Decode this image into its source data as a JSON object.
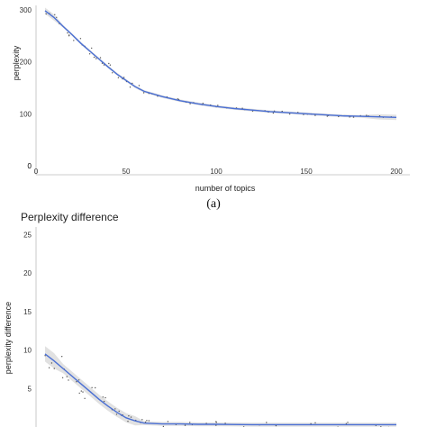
{
  "chart_data": [
    {
      "type": "line",
      "panel_label": "(a)",
      "title": "",
      "xlabel": "number of topics",
      "ylabel": "perplexity",
      "xlim": [
        0,
        205
      ],
      "ylim": [
        0,
        310
      ],
      "xticks": [
        0,
        50,
        100,
        150,
        200
      ],
      "yticks": [
        0,
        100,
        200,
        300
      ],
      "grid": false,
      "series": [
        {
          "color": "#4a6fd4",
          "band_color": "#c8c8c8",
          "x": [
            5,
            10,
            15,
            20,
            25,
            30,
            35,
            40,
            45,
            50,
            55,
            60,
            70,
            80,
            90,
            100,
            110,
            120,
            130,
            140,
            150,
            160,
            170,
            180,
            190,
            200
          ],
          "y": [
            298,
            285,
            268,
            252,
            235,
            220,
            205,
            190,
            176,
            164,
            152,
            143,
            133,
            125,
            119,
            114,
            110,
            107,
            104,
            102,
            100,
            98,
            96,
            95,
            94,
            93
          ]
        }
      ]
    },
    {
      "type": "line",
      "panel_label": "",
      "title": "Perplexity difference",
      "xlabel": "",
      "ylabel": "perplexity difference",
      "xlim": [
        0,
        205
      ],
      "ylim": [
        0,
        26
      ],
      "xticks": [],
      "yticks": [
        5,
        10,
        15,
        20,
        25
      ],
      "grid": false,
      "series": [
        {
          "color": "#4a6fd4",
          "band_color": "#c8c8c8",
          "x": [
            5,
            10,
            15,
            20,
            25,
            30,
            35,
            40,
            45,
            50,
            55,
            60,
            70,
            80,
            90,
            100,
            120,
            140,
            160,
            180,
            200
          ],
          "y": [
            9.5,
            8.6,
            7.6,
            6.6,
            5.6,
            4.6,
            3.6,
            2.7,
            1.9,
            1.2,
            0.8,
            0.5,
            0.4,
            0.4,
            0.35,
            0.35,
            0.3,
            0.3,
            0.3,
            0.3,
            0.3
          ]
        }
      ]
    }
  ]
}
